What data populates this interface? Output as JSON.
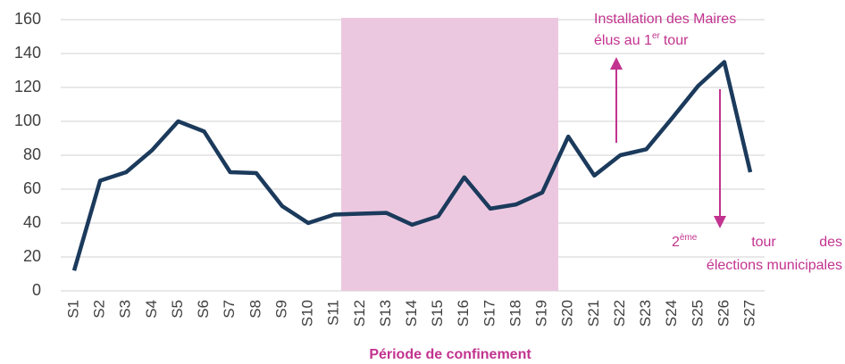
{
  "chart_data": {
    "type": "line",
    "categories": [
      "S1",
      "S2",
      "S3",
      "S4",
      "S5",
      "S6",
      "S7",
      "S8",
      "S9",
      "S10",
      "S11",
      "S12",
      "S13",
      "S14",
      "S15",
      "S16",
      "S17",
      "S18",
      "S19",
      "S20",
      "S21",
      "S22",
      "S23",
      "S24",
      "S25",
      "S26",
      "S27"
    ],
    "series": [
      {
        "name": null,
        "color": "#1b3a5c",
        "values": [
          12,
          65,
          70,
          83,
          100,
          94,
          70,
          69.5,
          50,
          40,
          45,
          45.5,
          46,
          39,
          44,
          67,
          48.5,
          51,
          58,
          91,
          68,
          80,
          83.5,
          102,
          121,
          135,
          70
        ]
      }
    ],
    "ylim": [
      0,
      160
    ],
    "yticks": [
      0,
      20,
      40,
      60,
      80,
      100,
      120,
      140,
      160
    ],
    "grid": true,
    "region_label": "Période de confinement",
    "annotations": [
      {
        "line1": "Installation des Maires",
        "line2": "élus au 1",
        "sup": "er",
        "line2_end": "tour"
      },
      {
        "sup_base": "2",
        "sup": "ème",
        "line1_end": "tour des",
        "line2": "élections municipales"
      }
    ]
  }
}
